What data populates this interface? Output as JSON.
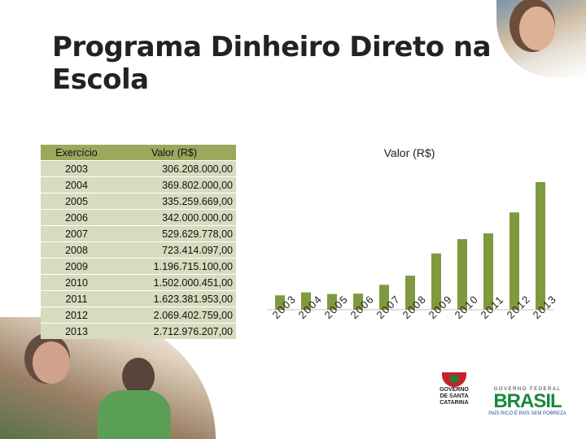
{
  "title": "Programa Dinheiro Direto na Escola",
  "table": {
    "headers": [
      "Exercício",
      "Valor (R$)"
    ],
    "rows": [
      [
        "2003",
        "306.208.000,00"
      ],
      [
        "2004",
        "369.802.000,00"
      ],
      [
        "2005",
        "335.259.669,00"
      ],
      [
        "2006",
        "342.000.000,00"
      ],
      [
        "2007",
        "529.629.778,00"
      ],
      [
        "2008",
        "723.414.097,00"
      ],
      [
        "2009",
        "1.196.715.100,00"
      ],
      [
        "2010",
        "1.502.000.451,00"
      ],
      [
        "2011",
        "1.623.381.953,00"
      ],
      [
        "2012",
        "2.069.402.759,00"
      ],
      [
        "2013",
        "2.712.976.207,00"
      ]
    ]
  },
  "chart_data": {
    "type": "bar",
    "title": "Valor (R$)",
    "categories": [
      "2003",
      "2004",
      "2005",
      "2006",
      "2007",
      "2008",
      "2009",
      "2010",
      "2011",
      "2012",
      "2013"
    ],
    "values": [
      306208000,
      369802000,
      335259669,
      342000000,
      529629778,
      723414097,
      1196715100,
      1502000451,
      1623381953,
      2069402759,
      2712976207
    ],
    "xlabel": "",
    "ylabel": "",
    "ylim": [
      0,
      2712976207
    ],
    "grid": false,
    "legend": "none",
    "bar_color": "#7f9a3e"
  },
  "logos": {
    "sc": [
      "GOVERNO",
      "DE SANTA",
      "CATARINA"
    ],
    "br": {
      "top": "GOVERNO FEDERAL",
      "word": "BRASIL",
      "slogan": "PAÍS RICO É PAÍS SEM POBREZA"
    }
  }
}
